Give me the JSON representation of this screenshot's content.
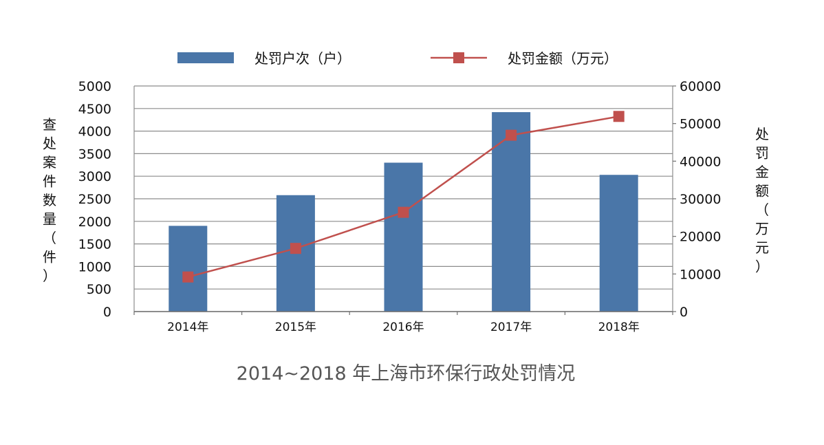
{
  "chart_data": {
    "type": "bar",
    "categories": [
      "2014年",
      "2015年",
      "2016年",
      "2017年",
      "2018年"
    ],
    "series": [
      {
        "name": "处罚户次（户）",
        "type": "bar",
        "axis": "left",
        "color": "#4A76A8",
        "values": [
          1900,
          2580,
          3300,
          4420,
          3030
        ]
      },
      {
        "name": "处罚金额（万元）",
        "type": "line",
        "axis": "right",
        "color": "#C0504D",
        "values": [
          9200,
          16800,
          26400,
          46900,
          51900
        ]
      }
    ],
    "ylabel_left": "查处案件数量（件）",
    "ylabel_right": "处罚金额（万元）",
    "ylim_left": [
      0,
      5000
    ],
    "yticks_left": [
      "0",
      "500",
      "1000",
      "1500",
      "2000",
      "2500",
      "3000",
      "3500",
      "4000",
      "4500",
      "5000"
    ],
    "ylim_right": [
      0,
      60000
    ],
    "yticks_right": [
      "0",
      "10000",
      "20000",
      "30000",
      "40000",
      "50000",
      "60000"
    ],
    "title": "2014~2018 年上海市环保行政处罚情况",
    "legend_position": "top",
    "grid": true
  }
}
